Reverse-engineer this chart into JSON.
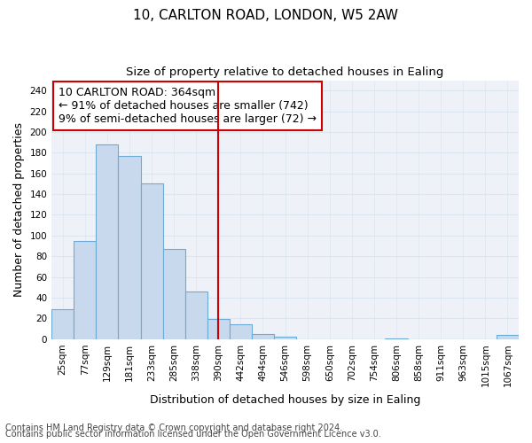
{
  "title": "10, CARLTON ROAD, LONDON, W5 2AW",
  "subtitle": "Size of property relative to detached houses in Ealing",
  "xlabel": "Distribution of detached houses by size in Ealing",
  "ylabel": "Number of detached properties",
  "footnote1": "Contains HM Land Registry data © Crown copyright and database right 2024.",
  "footnote2": "Contains public sector information licensed under the Open Government Licence v3.0.",
  "annotation_line1": "10 CARLTON ROAD: 364sqm",
  "annotation_line2": "← 91% of detached houses are smaller (742)",
  "annotation_line3": "9% of semi-detached houses are larger (72) →",
  "bar_labels": [
    "25sqm",
    "77sqm",
    "129sqm",
    "181sqm",
    "233sqm",
    "285sqm",
    "338sqm",
    "390sqm",
    "442sqm",
    "494sqm",
    "546sqm",
    "598sqm",
    "650sqm",
    "702sqm",
    "754sqm",
    "806sqm",
    "858sqm",
    "911sqm",
    "963sqm",
    "1015sqm",
    "1067sqm"
  ],
  "bar_values": [
    29,
    95,
    188,
    177,
    150,
    87,
    46,
    19,
    14,
    5,
    2,
    0,
    0,
    0,
    0,
    1,
    0,
    0,
    0,
    0,
    4
  ],
  "bar_color": "#c8d9ee",
  "bar_edge_color": "#6aaad4",
  "vline_color": "#cc0000",
  "vline_x": 7.0,
  "box_edge_color": "#cc0000",
  "ylim": [
    0,
    250
  ],
  "yticks": [
    0,
    20,
    40,
    60,
    80,
    100,
    120,
    140,
    160,
    180,
    200,
    220,
    240
  ],
  "grid_color": "#dce6f0",
  "bg_color": "#eef2f8",
  "title_fontsize": 11,
  "subtitle_fontsize": 9.5,
  "annotation_fontsize": 9,
  "tick_fontsize": 7.5,
  "label_fontsize": 9,
  "footnote_fontsize": 7
}
